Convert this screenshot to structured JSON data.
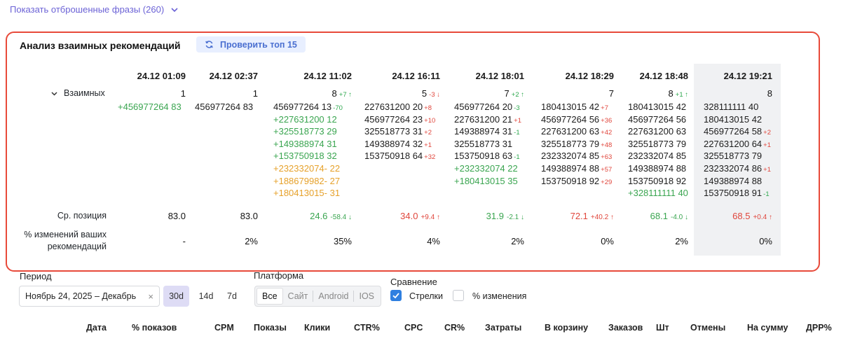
{
  "top_link": {
    "label": "Показать отброшенные фразы (260)",
    "icon": "chevron-down-icon"
  },
  "panel": {
    "title": "Анализ взаимных рекомендаций",
    "check_button": "Проверить топ 15",
    "row_labels": {
      "mutual": "Взаимных",
      "avg": "Ср. позиция",
      "pct_line1": "% изменений ваших",
      "pct_line2": "рекомендаций"
    },
    "columns": [
      {
        "date": "24.12 01:09",
        "count": "1",
        "count_delta": "",
        "count_dir": "",
        "phrases": [
          {
            "id": "+456977264",
            "pos": "83",
            "d": "",
            "c": "green"
          }
        ],
        "avg": "83.0",
        "avg_delta": "",
        "avg_dir": "",
        "avg_color": "black",
        "pct": "-"
      },
      {
        "date": "24.12 02:37",
        "count": "1",
        "count_delta": "",
        "count_dir": "",
        "phrases": [
          {
            "id": "456977264",
            "pos": "83",
            "d": "",
            "c": "black"
          }
        ],
        "avg": "83.0",
        "avg_delta": "",
        "avg_dir": "",
        "avg_color": "black",
        "pct": "2%"
      },
      {
        "date": "24.12 11:02",
        "count": "8",
        "count_delta": "+7",
        "count_dir": "up",
        "phrases": [
          {
            "id": "456977264",
            "pos": "13",
            "d": "-70",
            "c": "black"
          },
          {
            "id": "+227631200",
            "pos": "12",
            "d": "",
            "c": "green"
          },
          {
            "id": "+325518773",
            "pos": "29",
            "d": "",
            "c": "green"
          },
          {
            "id": "+149388974",
            "pos": "31",
            "d": "",
            "c": "green"
          },
          {
            "id": "+153750918",
            "pos": "32",
            "d": "",
            "c": "green"
          },
          {
            "id": "+232332074-",
            "pos": "22",
            "d": "",
            "c": "orange"
          },
          {
            "id": "+188679982-",
            "pos": "27",
            "d": "",
            "c": "orange"
          },
          {
            "id": "+180413015-",
            "pos": "31",
            "d": "",
            "c": "orange"
          }
        ],
        "avg": "24.6",
        "avg_delta": "-58.4",
        "avg_dir": "down",
        "avg_color": "green",
        "pct": "35%"
      },
      {
        "date": "24.12 16:11",
        "count": "5",
        "count_delta": "-3",
        "count_dir": "down",
        "phrases": [
          {
            "id": "227631200",
            "pos": "20",
            "d": "+8",
            "c": "black"
          },
          {
            "id": "456977264",
            "pos": "23",
            "d": "+10",
            "c": "black"
          },
          {
            "id": "325518773",
            "pos": "31",
            "d": "+2",
            "c": "black"
          },
          {
            "id": "149388974",
            "pos": "32",
            "d": "+1",
            "c": "black"
          },
          {
            "id": "153750918",
            "pos": "64",
            "d": "+32",
            "c": "black"
          }
        ],
        "avg": "34.0",
        "avg_delta": "+9.4",
        "avg_dir": "up",
        "avg_color": "red",
        "pct": "4%"
      },
      {
        "date": "24.12 18:01",
        "count": "7",
        "count_delta": "+2",
        "count_dir": "up",
        "phrases": [
          {
            "id": "456977264",
            "pos": "20",
            "d": "-3",
            "c": "black"
          },
          {
            "id": "227631200",
            "pos": "21",
            "d": "+1",
            "c": "black"
          },
          {
            "id": "149388974",
            "pos": "31",
            "d": "-1",
            "c": "black"
          },
          {
            "id": "325518773",
            "pos": "31",
            "d": "",
            "c": "black"
          },
          {
            "id": "153750918",
            "pos": "63",
            "d": "-1",
            "c": "black"
          },
          {
            "id": "+232332074",
            "pos": "22",
            "d": "",
            "c": "green"
          },
          {
            "id": "+180413015",
            "pos": "35",
            "d": "",
            "c": "green"
          }
        ],
        "avg": "31.9",
        "avg_delta": "-2.1",
        "avg_dir": "down",
        "avg_color": "green",
        "pct": "2%"
      },
      {
        "date": "24.12 18:29",
        "count": "7",
        "count_delta": "",
        "count_dir": "",
        "phrases": [
          {
            "id": "180413015",
            "pos": "42",
            "d": "+7",
            "c": "black"
          },
          {
            "id": "456977264",
            "pos": "56",
            "d": "+36",
            "c": "black"
          },
          {
            "id": "227631200",
            "pos": "63",
            "d": "+42",
            "c": "black"
          },
          {
            "id": "325518773",
            "pos": "79",
            "d": "+48",
            "c": "black"
          },
          {
            "id": "232332074",
            "pos": "85",
            "d": "+63",
            "c": "black"
          },
          {
            "id": "149388974",
            "pos": "88",
            "d": "+57",
            "c": "black"
          },
          {
            "id": "153750918",
            "pos": "92",
            "d": "+29",
            "c": "black"
          }
        ],
        "avg": "72.1",
        "avg_delta": "+40.2",
        "avg_dir": "up",
        "avg_color": "red",
        "pct": "0%"
      },
      {
        "date": "24.12 18:48",
        "count": "8",
        "count_delta": "+1",
        "count_dir": "up",
        "phrases": [
          {
            "id": "180413015",
            "pos": "42",
            "d": "",
            "c": "black"
          },
          {
            "id": "456977264",
            "pos": "56",
            "d": "",
            "c": "black"
          },
          {
            "id": "227631200",
            "pos": "63",
            "d": "",
            "c": "black"
          },
          {
            "id": "325518773",
            "pos": "79",
            "d": "",
            "c": "black"
          },
          {
            "id": "232332074",
            "pos": "85",
            "d": "",
            "c": "black"
          },
          {
            "id": "149388974",
            "pos": "88",
            "d": "",
            "c": "black"
          },
          {
            "id": "153750918",
            "pos": "92",
            "d": "",
            "c": "black"
          },
          {
            "id": "+328111111",
            "pos": "40",
            "d": "",
            "c": "green"
          }
        ],
        "avg": "68.1",
        "avg_delta": "-4.0",
        "avg_dir": "down",
        "avg_color": "green",
        "pct": "2%"
      },
      {
        "date": "24.12 19:21",
        "count": "8",
        "count_delta": "",
        "count_dir": "",
        "phrases": [
          {
            "id": "328111111",
            "pos": "40",
            "d": "",
            "c": "black"
          },
          {
            "id": "180413015",
            "pos": "42",
            "d": "",
            "c": "black"
          },
          {
            "id": "456977264",
            "pos": "58",
            "d": "+2",
            "c": "black"
          },
          {
            "id": "227631200",
            "pos": "64",
            "d": "+1",
            "c": "black"
          },
          {
            "id": "325518773",
            "pos": "79",
            "d": "",
            "c": "black"
          },
          {
            "id": "232332074",
            "pos": "86",
            "d": "+1",
            "c": "black"
          },
          {
            "id": "149388974",
            "pos": "88",
            "d": "",
            "c": "black"
          },
          {
            "id": "153750918",
            "pos": "91",
            "d": "-1",
            "c": "black"
          }
        ],
        "avg": "68.5",
        "avg_delta": "+0.4",
        "avg_dir": "up",
        "avg_color": "red",
        "pct": "0%"
      }
    ]
  },
  "filters": {
    "period_label": "Период",
    "period_value": "Ноябрь 24, 2025 – Декабрь",
    "clear_icon": "×",
    "ranges": [
      {
        "label": "30d",
        "active": true
      },
      {
        "label": "14d",
        "active": false
      },
      {
        "label": "7d",
        "active": false
      }
    ],
    "platform_label": "Платформа",
    "platforms": [
      {
        "label": "Все",
        "active": true
      },
      {
        "label": "Сайт",
        "active": false
      },
      {
        "label": "Android",
        "active": false
      },
      {
        "label": "IOS",
        "active": false
      }
    ],
    "comparison_label": "Сравнение",
    "comparison_options": [
      {
        "label": "Стрелки",
        "checked": true
      },
      {
        "label": "% изменения",
        "checked": false
      }
    ]
  },
  "table_headers": [
    "Дата",
    "% показов",
    "CPM",
    "Показы",
    "Клики",
    "CTR%",
    "CPC",
    "CR%",
    "Затраты",
    "В корзину",
    "Заказов",
    "Шт",
    "Отмены",
    "На сумму",
    "ДРР%"
  ],
  "colors": {
    "green": "#3aa550",
    "red": "#e0463c",
    "orange": "#e6a12a",
    "accent": "#6b62d6",
    "highlight_border": "#e84a3a"
  }
}
